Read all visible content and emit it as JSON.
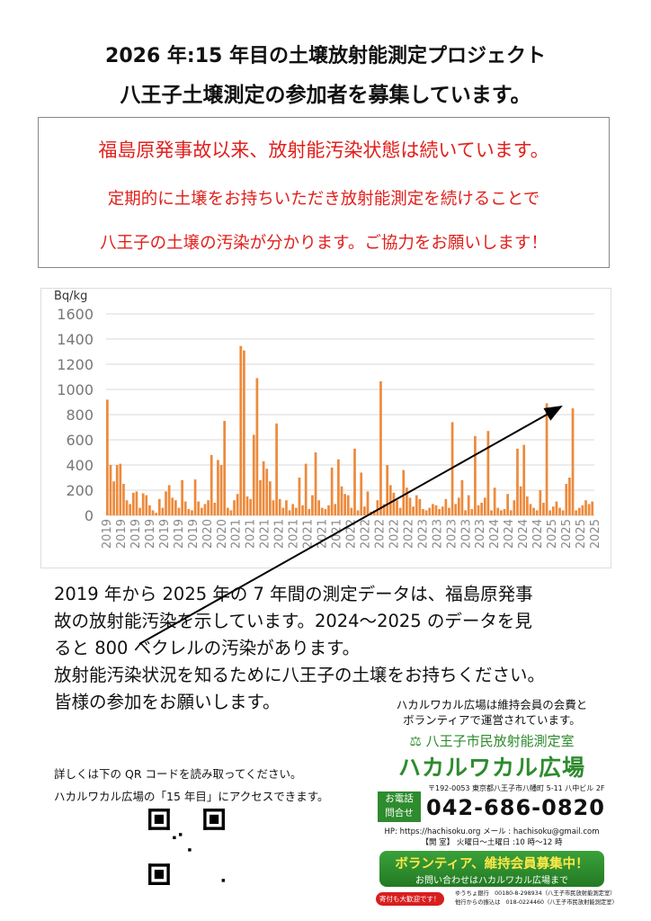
{
  "header": {
    "title_line1": "2026 年:15 年目の土壌放射能測定プロジェクト",
    "title_line2": "八王子土壌測定の参加者を募集しています。"
  },
  "notice": {
    "line1": "福島原発事故以来、放射能汚染状態は続いています。",
    "line2": "定期的に土壌をお持ちいただき放射能測定を続けることで",
    "line3": "八王子の土壌の汚染が分かります。ご協力をお願いします！",
    "color": "#e0201c"
  },
  "chart_data": {
    "type": "bar",
    "ylabel": "Bq/kg",
    "ylim": [
      0,
      1600
    ],
    "yticks": [
      0,
      200,
      400,
      600,
      800,
      1000,
      1200,
      1400,
      1600
    ],
    "grid": true,
    "color": "#ed8a3c",
    "xtick_labels": [
      "2019",
      "2019",
      "2019",
      "2019",
      "2019",
      "2019",
      "2019",
      "2020",
      "2020",
      "2021",
      "2021",
      "2021",
      "2021",
      "2021",
      "2021",
      "2021",
      "2021",
      "2022",
      "2022",
      "2022",
      "2022",
      "2022",
      "2023",
      "2023",
      "2023",
      "2023",
      "2023",
      "2024",
      "2024",
      "2024",
      "2024",
      "2025",
      "2025",
      "2025",
      "2025"
    ],
    "values": [
      919,
      400,
      270,
      400,
      410,
      250,
      120,
      90,
      180,
      190,
      60,
      175,
      160,
      80,
      40,
      20,
      130,
      60,
      190,
      240,
      140,
      120,
      60,
      280,
      110,
      50,
      40,
      285,
      110,
      60,
      90,
      120,
      480,
      100,
      440,
      400,
      750,
      60,
      40,
      120,
      170,
      1345,
      1310,
      150,
      130,
      640,
      1090,
      280,
      430,
      370,
      270,
      120,
      730,
      130,
      60,
      120,
      40,
      90,
      60,
      300,
      80,
      410,
      50,
      160,
      500,
      120,
      60,
      50,
      80,
      380,
      90,
      445,
      230,
      170,
      160,
      60,
      530,
      40,
      340,
      70,
      190,
      30,
      40,
      120,
      1065,
      90,
      400,
      240,
      180,
      120,
      60,
      360,
      220,
      140,
      70,
      160,
      130,
      50,
      40,
      60,
      90,
      80,
      50,
      70,
      130,
      60,
      740,
      90,
      140,
      280,
      40,
      160,
      50,
      630,
      80,
      100,
      140,
      670,
      40,
      220,
      60,
      40,
      50,
      170,
      40,
      120,
      530,
      230,
      560,
      150,
      90,
      60,
      40,
      200,
      100,
      890,
      40,
      70,
      110,
      60,
      40,
      250,
      300,
      850,
      40,
      60,
      80,
      120,
      90,
      110
    ]
  },
  "body": {
    "line1": "2019 年から 2025 年の 7 年間の測定データは、福島原発事",
    "line2": "故の放射能汚染を示しています。2024～2025 のデータを見",
    "line3": "ると 800 ベクレルの汚染があります。",
    "line4": "放射能汚染状況を知るために八王子の土壌をお持ちください。",
    "line5": "皆様の参加をお願いします。"
  },
  "qr": {
    "line1": "詳しくは下の QR コードを読み取ってください。",
    "line2": "ハカルワカル広場の「15 年目」にアクセスできます。"
  },
  "org": {
    "intro1": "ハカルワカル広場は維持会員の会費と",
    "intro2": "ボランティアで運営されています。",
    "lab_name": "八王子市民放射能測定室",
    "logo_text": "ハカルワカル広場",
    "address": "〒192-0053 東京都八王子市八幡町 5-11 八中ビル 2F",
    "phone_label1": "お電話",
    "phone_label2": "問合せ",
    "phone": "042-686-0820",
    "hp": "HP: https://hachisoku.org  メール : hachisoku@gmail.com",
    "hours": "【開 室】 火曜日～土曜日 :10 時～12 時",
    "banner_title": "ボランティア、維持会員募集中！",
    "banner_sub": "お問い合わせはハカルワカル広場まで",
    "donation_badge": "寄付も大歓迎です！",
    "bank1": "ゆうちょ銀行　00180-8-298934（八王子市民放射能測定室）",
    "bank2": "他行からの振込は　018-0224460（八王子市民放射能測定室）",
    "green": "#2e8b2e",
    "orange": "#f08c00"
  }
}
